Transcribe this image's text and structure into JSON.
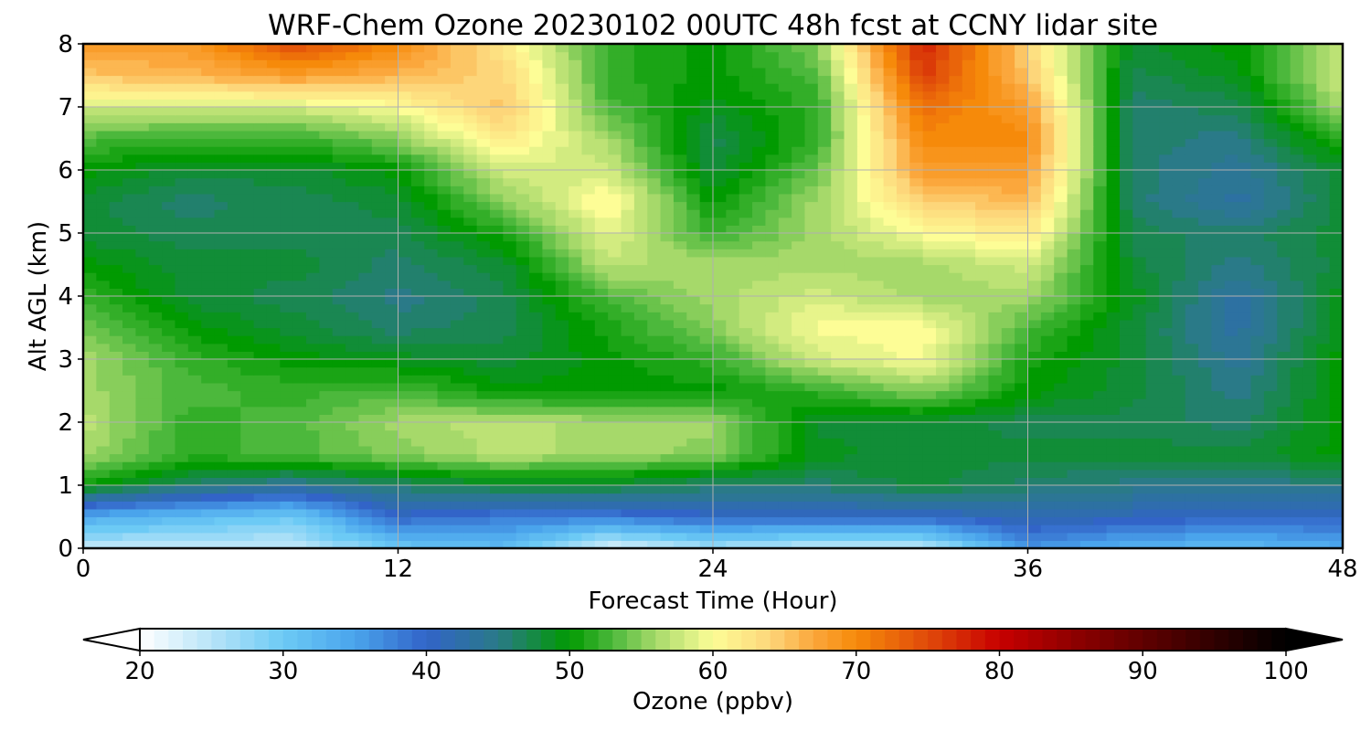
{
  "chart_data": {
    "type": "heatmap",
    "title": "WRF-Chem Ozone  20230102 00UTC 48h fcst at CCNY lidar site",
    "xlabel": "Forecast Time (Hour)",
    "ylabel": "Alt AGL (km)",
    "xlim": [
      0,
      48
    ],
    "ylim": [
      0,
      8
    ],
    "x_ticks": [
      "0",
      "12",
      "24",
      "36",
      "48"
    ],
    "y_ticks": [
      "0",
      "1",
      "2",
      "3",
      "4",
      "5",
      "6",
      "7",
      "8"
    ],
    "grid": true,
    "colorbar": {
      "label": "Ozone  (ppbv)",
      "range": [
        20,
        100
      ],
      "ticks": [
        "20",
        "30",
        "40",
        "50",
        "60",
        "70",
        "80",
        "90",
        "100"
      ],
      "extend": "both",
      "colors": {
        "20": "#ffffff",
        "25": "#b8e4f8",
        "30": "#6ccaf5",
        "35": "#4aa4ec",
        "40": "#3264c8",
        "45": "#2a7a88",
        "50": "#019a01",
        "53": "#4cb83c",
        "56": "#a6d96a",
        "60": "#fdfd96",
        "64": "#fdd67a",
        "67": "#fba73c",
        "70": "#f68a0a",
        "75": "#e04a0a",
        "80": "#c80000",
        "85": "#900000",
        "90": "#600000",
        "95": "#300000",
        "100": "#000000"
      }
    },
    "time_hours": [
      0,
      4,
      8,
      12,
      16,
      20,
      24,
      28,
      32,
      36,
      40,
      44,
      48
    ],
    "altitude_km": [
      0,
      0.5,
      1,
      1.5,
      2,
      2.5,
      3,
      3.5,
      4,
      4.5,
      5,
      5.5,
      6,
      6.5,
      7,
      7.5,
      8
    ],
    "ozone_ppbv": [
      [
        24,
        24,
        24,
        30,
        32,
        22,
        26,
        24,
        24,
        36,
        33,
        32,
        34
      ],
      [
        34,
        32,
        30,
        40,
        38,
        38,
        40,
        40,
        40,
        42,
        41,
        40,
        40
      ],
      [
        50,
        46,
        44,
        46,
        48,
        48,
        46,
        46,
        48,
        46,
        45,
        45,
        45
      ],
      [
        56,
        52,
        53,
        55,
        57,
        56,
        55,
        49,
        48,
        48,
        48,
        48,
        50
      ],
      [
        57,
        52,
        53,
        56,
        57,
        56,
        56,
        48,
        48,
        47,
        47,
        46,
        50
      ],
      [
        56,
        53,
        52,
        53,
        50,
        50,
        50,
        52,
        55,
        50,
        48,
        45,
        50
      ],
      [
        56,
        52,
        50,
        49,
        48,
        50,
        52,
        58,
        60,
        51,
        48,
        44,
        50
      ],
      [
        54,
        50,
        48,
        46,
        47,
        51,
        55,
        60,
        60,
        53,
        48,
        43,
        49
      ],
      [
        52,
        48,
        47,
        45,
        47,
        53,
        56,
        58,
        56,
        56,
        49,
        43,
        49
      ],
      [
        50,
        48,
        48,
        46,
        48,
        57,
        56,
        56,
        56,
        58,
        48,
        45,
        48
      ],
      [
        48,
        47,
        47,
        47,
        51,
        59,
        52,
        56,
        60,
        62,
        47,
        46,
        48
      ],
      [
        48,
        46,
        47,
        48,
        55,
        61,
        50,
        56,
        64,
        66,
        46,
        43,
        48
      ],
      [
        50,
        48,
        48,
        50,
        58,
        58,
        48,
        54,
        68,
        68,
        46,
        44,
        48
      ],
      [
        53,
        52,
        52,
        55,
        62,
        56,
        47,
        52,
        70,
        70,
        46,
        45,
        52
      ],
      [
        58,
        58,
        58,
        60,
        65,
        53,
        49,
        52,
        72,
        68,
        46,
        47,
        56
      ],
      [
        65,
        66,
        68,
        66,
        64,
        52,
        50,
        53,
        76,
        65,
        47,
        49,
        58
      ],
      [
        68,
        68,
        75,
        70,
        62,
        52,
        50,
        55,
        78,
        64,
        48,
        50,
        58
      ]
    ]
  }
}
